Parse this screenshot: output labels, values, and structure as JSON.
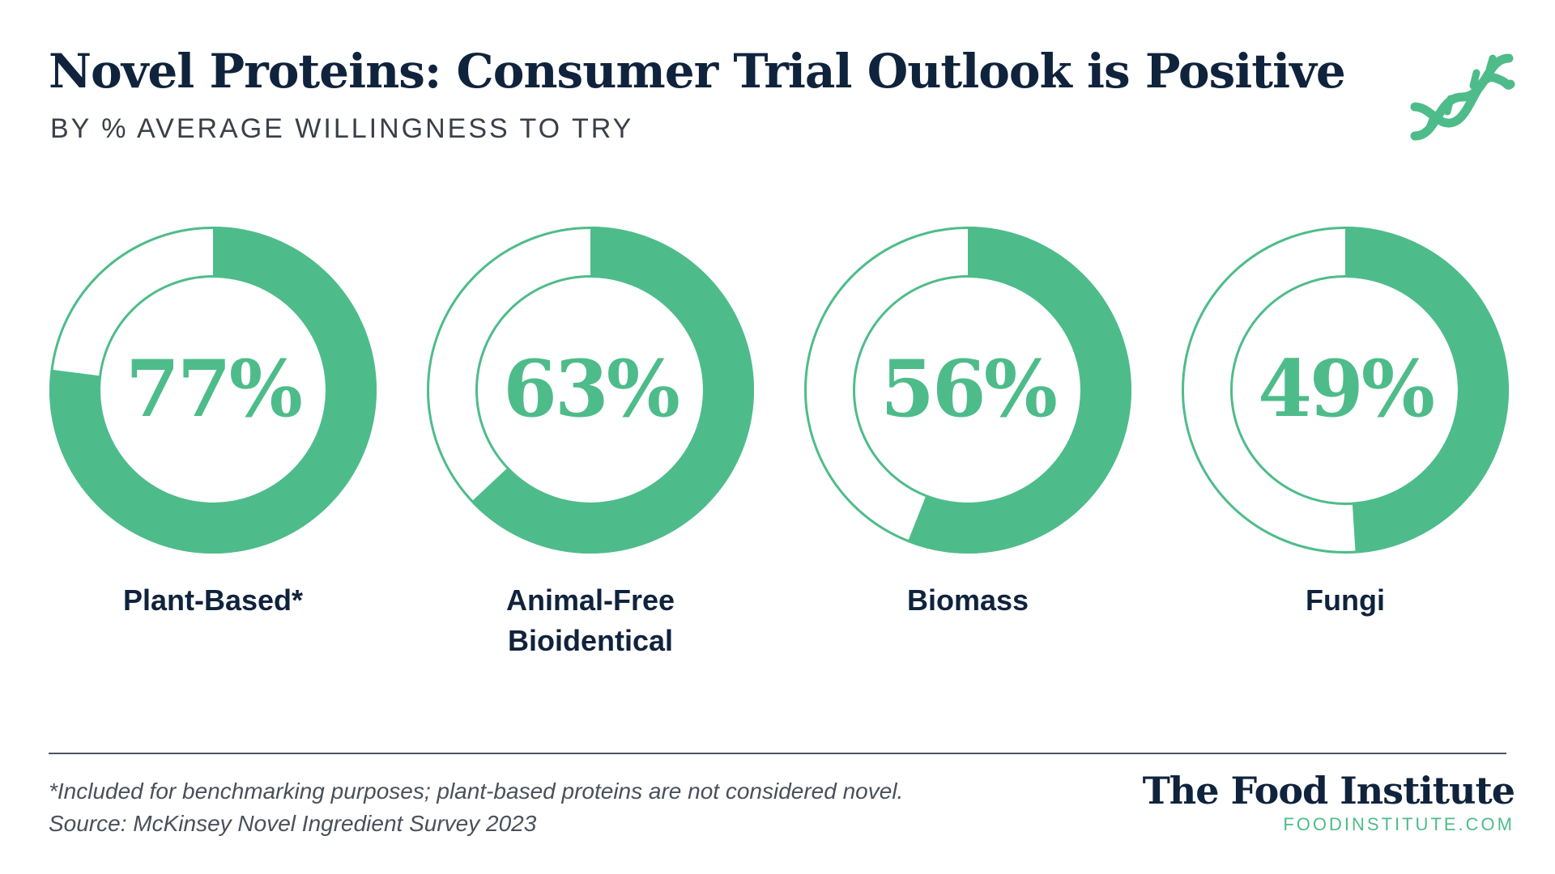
{
  "title": "Novel Proteins: Consumer Trial Outlook is Positive",
  "subtitle": "BY % AVERAGE WILLINGNESS TO TRY",
  "colors": {
    "accent": "#4ebc8a",
    "navy": "#10233d",
    "background": "#ffffff"
  },
  "logo_icon": "dna-helix-icon",
  "chart_data": {
    "type": "pie",
    "categories": [
      "Plant-Based*",
      "Animal-Free Bioidentical",
      "Biomass",
      "Fungi"
    ],
    "values": [
      77,
      63,
      56,
      49
    ],
    "value_labels": [
      "77%",
      "63%",
      "56%",
      "49%"
    ],
    "label_lines": [
      [
        "Plant-Based*"
      ],
      [
        "Animal-Free",
        "Bioidentical"
      ],
      [
        "Biomass"
      ],
      [
        "Fungi"
      ]
    ],
    "unit": "%",
    "max": 100
  },
  "footer": {
    "note": "*Included for benchmarking purposes; plant-based proteins are not considered novel.",
    "source": "Source: McKinsey Novel Ingredient Survey 2023",
    "brand": "The Food Institute",
    "url": "FOODINSTITUTE.COM"
  }
}
